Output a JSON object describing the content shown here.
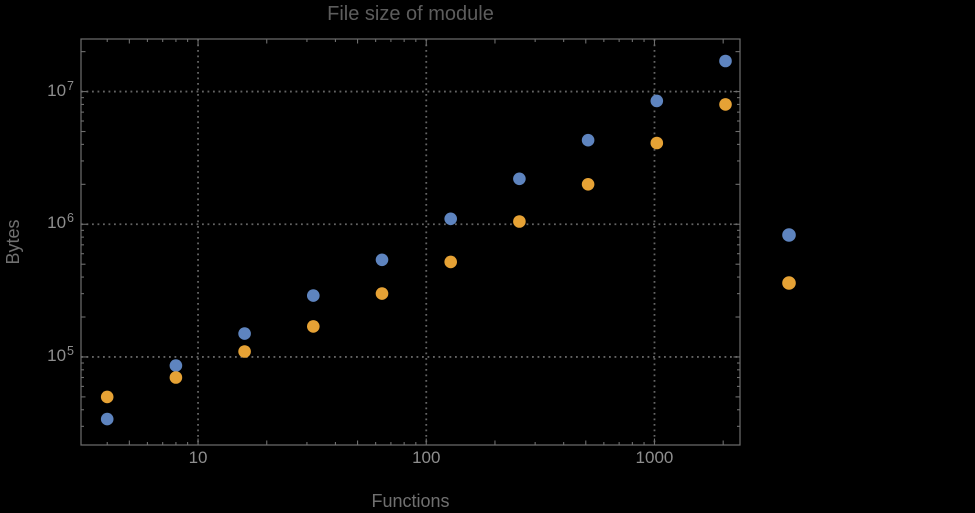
{
  "chart_data": {
    "type": "scatter",
    "title": "File size of module",
    "xlabel": "Functions",
    "ylabel": "Bytes",
    "x_scale": "log",
    "y_scale": "log",
    "x": [
      4,
      8,
      16,
      32,
      64,
      128,
      256,
      512,
      1024,
      2048
    ],
    "series": [
      {
        "name": "blue",
        "color": "#5e84bf",
        "values": [
          34000,
          86000,
          150000,
          290000,
          540000,
          1100000,
          2200000,
          4300000,
          8500000,
          17000000
        ]
      },
      {
        "name": "orange",
        "color": "#e6a235",
        "values": [
          50000,
          70000,
          110000,
          170000,
          300000,
          520000,
          1050000,
          2000000,
          4100000,
          8000000
        ]
      }
    ],
    "x_ticks": [
      10,
      100,
      1000
    ],
    "y_ticks": [
      100000,
      1000000,
      10000000
    ],
    "x_range": [
      3.07,
      2370
    ],
    "y_range": [
      21700,
      24900000
    ],
    "grid": "dotted",
    "legend": {
      "position": "outside-right",
      "labels_visible": false,
      "marker_colors": [
        "#5e84bf",
        "#e6a235"
      ]
    },
    "colors": {
      "background": "#000000",
      "frame": "#6e6e6e",
      "grid": "#646464",
      "title": "#5d5d5d",
      "axis_label": "#707070",
      "tick_label": "#8e8e8e"
    }
  }
}
